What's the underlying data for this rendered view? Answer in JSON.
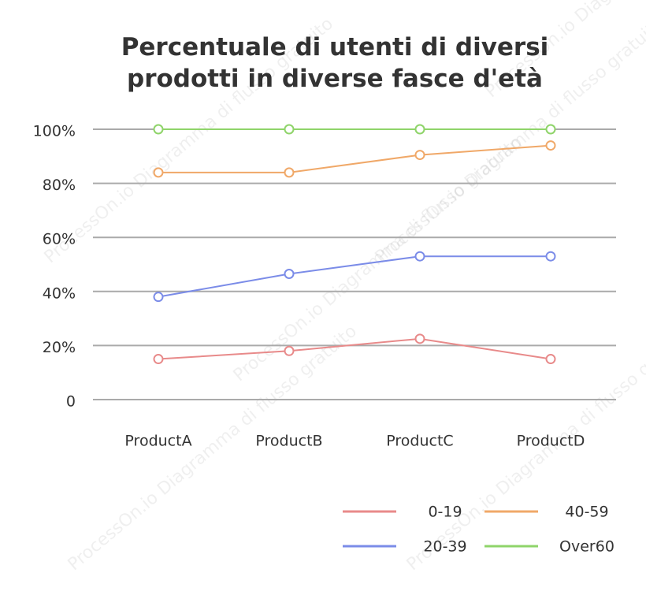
{
  "chart_data": {
    "type": "line",
    "title": "Percentuale di utenti di diversi prodotti in diverse fasce d'età",
    "categories": [
      "ProductA",
      "ProductB",
      "ProductC",
      "ProductD"
    ],
    "series": [
      {
        "name": "0-19",
        "color": "#e88a8a",
        "values": [
          15,
          18,
          22.5,
          15
        ]
      },
      {
        "name": "20-39",
        "color": "#7b8ce8",
        "values": [
          38,
          46.5,
          53,
          53
        ]
      },
      {
        "name": "40-59",
        "color": "#f0a868",
        "values": [
          84,
          84,
          90.5,
          94
        ]
      },
      {
        "name": "Over60",
        "color": "#8fd46a",
        "values": [
          100,
          100,
          100,
          100
        ]
      }
    ],
    "ylim": [
      0,
      100
    ],
    "yticks": [
      0,
      {
        "value": 20,
        "label": "20%"
      },
      {
        "value": 40,
        "label": "40%"
      },
      {
        "value": 60,
        "label": "60%"
      },
      {
        "value": 80,
        "label": "80%"
      },
      {
        "value": 100,
        "label": "100%"
      }
    ],
    "grid": true,
    "legend": "bottom-right",
    "watermark": "ProcessOn.io Diagramma di flusso gratuito"
  }
}
